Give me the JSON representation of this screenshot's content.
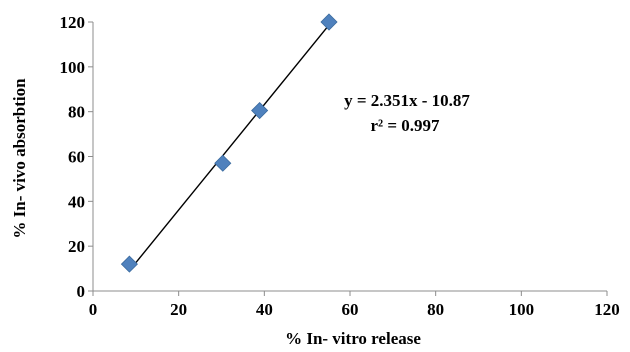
{
  "chart_data": {
    "type": "scatter",
    "title": "",
    "xlabel": "% In- vitro release",
    "ylabel": "% In- vivo absorbtion",
    "xlim": [
      0,
      120
    ],
    "ylim": [
      0,
      120
    ],
    "x_ticks": [
      0,
      20,
      40,
      60,
      80,
      100,
      120
    ],
    "y_ticks": [
      0,
      20,
      40,
      60,
      80,
      100,
      120
    ],
    "grid": false,
    "legend": false,
    "series": [
      {
        "points": [
          {
            "x": 8.5,
            "y": 12
          },
          {
            "x": 30.3,
            "y": 57
          },
          {
            "x": 38.9,
            "y": 80.5
          },
          {
            "x": 55.1,
            "y": 120
          }
        ],
        "marker": "diamond",
        "color": "#4F81BD"
      }
    ],
    "trendline": {
      "x_range": [
        8.5,
        55.1
      ],
      "slope": 2.351,
      "intercept": -10.87,
      "color": "#000000"
    },
    "annotations": [
      {
        "text": "y = 2.351x - 10.87"
      },
      {
        "text": "r² = 0.997"
      }
    ]
  }
}
